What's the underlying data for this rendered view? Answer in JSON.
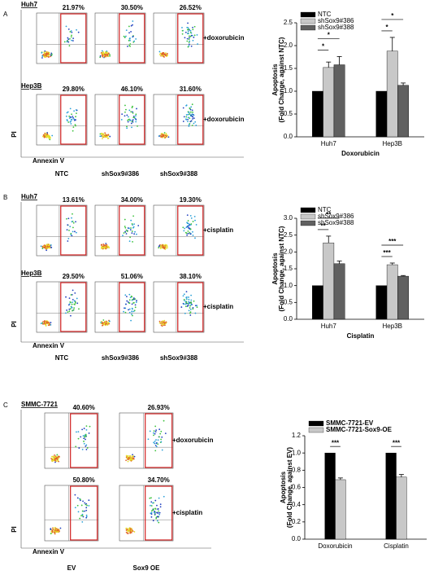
{
  "chart_data": [
    {
      "type": "bar",
      "categories": [
        "Huh7",
        "Hep3B"
      ],
      "x_label": "Doxorubicin",
      "y_label": [
        "Apoptosis",
        "(Fold Change, against NTC)"
      ],
      "series": [
        {
          "name": "NTC",
          "color": "#000000",
          "values": [
            1,
            1
          ],
          "errors": [
            0,
            0
          ]
        },
        {
          "name": "shSox9#386",
          "color": "#c8c8c8",
          "values": [
            1.52,
            1.88
          ],
          "errors": [
            0.12,
            0.3
          ]
        },
        {
          "name": "shSox9#388",
          "color": "#606060",
          "values": [
            1.58,
            1.13
          ],
          "errors": [
            0.18,
            0.05
          ]
        }
      ],
      "annotations": [
        [
          "*",
          "*"
        ],
        [
          "*",
          "*"
        ]
      ],
      "ylim": [
        0,
        2.5
      ],
      "yticks": [
        {
          "value": 0,
          "label": "0.0"
        },
        0.5,
        {
          "value": 1,
          "label": "1.0"
        },
        1.5,
        {
          "value": 2,
          "label": "2.0"
        },
        2.5
      ]
    },
    {
      "type": "bar",
      "categories": [
        "Huh7",
        "Hep3B"
      ],
      "x_label": "Cisplatin",
      "y_label": [
        "Apoptosis",
        "(Fold Change, against NTC)"
      ],
      "series": [
        {
          "name": "NTC",
          "color": "#000000",
          "values": [
            1,
            1
          ],
          "errors": [
            0,
            0
          ]
        },
        {
          "name": "shSox9#386",
          "color": "#c8c8c8",
          "values": [
            2.27,
            1.62
          ],
          "errors": [
            0.2,
            0.05
          ]
        },
        {
          "name": "shSox9#388",
          "color": "#606060",
          "values": [
            1.65,
            1.28
          ],
          "errors": [
            0.08,
            0.02
          ]
        }
      ],
      "annotations": [
        [
          "**",
          "**"
        ],
        [
          "***",
          "***"
        ]
      ],
      "ylim": [
        0,
        3
      ],
      "yticks": [
        {
          "value": 0,
          "label": "0.0"
        },
        0.5,
        {
          "value": 1,
          "label": "1.0"
        },
        1.5,
        {
          "value": 2,
          "label": "2.0"
        },
        2.5,
        {
          "value": 3,
          "label": "3.0"
        }
      ]
    },
    {
      "type": "bar",
      "categories": [
        "Doxorubicin",
        "Cisplatin"
      ],
      "y_label": [
        "Apoptosis",
        "(Fold Change, against EV)"
      ],
      "series": [
        {
          "name": "SMMC-7721-EV",
          "color": "#000000",
          "values": [
            1,
            1
          ],
          "errors": [
            0,
            0
          ]
        },
        {
          "name": "SMMC-7721-Sox9-OE",
          "color": "#c8c8c8",
          "values": [
            0.69,
            0.72
          ],
          "errors": [
            0.02,
            0.03
          ]
        }
      ],
      "annotations": [
        [
          "***"
        ],
        [
          "***"
        ]
      ],
      "ylim": [
        0,
        1.2
      ],
      "yticks": [
        {
          "value": 0,
          "label": "0.0"
        },
        0.2,
        0.4,
        0.6,
        0.8,
        {
          "value": 1,
          "label": "1.0"
        },
        1.2
      ]
    }
  ],
  "flow_panels": [
    {
      "letter": "A",
      "x_axis": "Annexin V",
      "y_axis": "PI",
      "columns": [
        "NTC",
        "shSox9#386",
        "shSox9#388"
      ],
      "rows": [
        {
          "cell_line": "Huh7",
          "treatment": "+doxorubicin",
          "percentages": [
            "21.97%",
            "30.50%",
            "26.52%"
          ]
        },
        {
          "cell_line": "Hep3B",
          "treatment": "+doxorubicin",
          "percentages": [
            "29.80%",
            "46.10%",
            "31.60%"
          ]
        }
      ]
    },
    {
      "letter": "B",
      "x_axis": "Annexin V",
      "y_axis": "PI",
      "columns": [
        "NTC",
        "shSox9#386",
        "shSox9#388"
      ],
      "rows": [
        {
          "cell_line": "Huh7",
          "treatment": "+cisplatin",
          "percentages": [
            "13.61%",
            "34.00%",
            "19.30%"
          ]
        },
        {
          "cell_line": "Hep3B",
          "treatment": "+cisplatin",
          "percentages": [
            "29.50%",
            "51.06%",
            "38.10%"
          ]
        }
      ]
    },
    {
      "letter": "C",
      "x_axis": "Annexin V",
      "y_axis": "PI",
      "columns": [
        "EV",
        "Sox9 OE"
      ],
      "rows": [
        {
          "cell_line": "SMMC-7721",
          "treatment": "+doxorubicin",
          "percentages": [
            "40.60%",
            "26.93%"
          ]
        },
        {
          "treatment": "+cisplatin",
          "percentages": [
            "50.80%",
            "34.70%"
          ]
        }
      ]
    }
  ]
}
